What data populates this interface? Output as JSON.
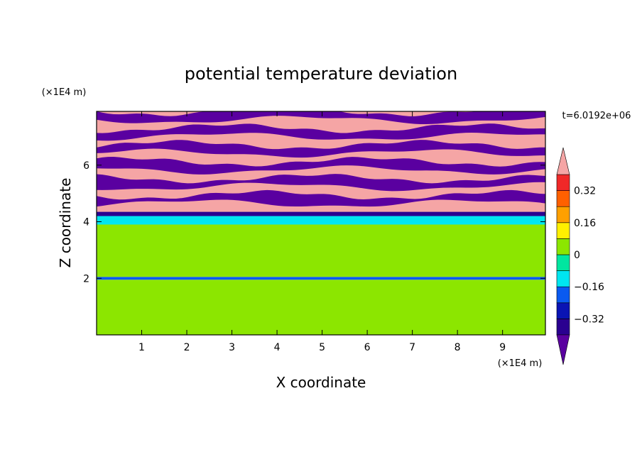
{
  "chart_data": {
    "type": "heatmap",
    "title": "potential temperature deviation",
    "xlabel": "X coordinate",
    "ylabel": "Z coordinate",
    "x_unit": "(×1E4 m)",
    "y_unit": "(×1E4 m)",
    "time_label": "t=6.0192e+06",
    "xlim": [
      0,
      9.95
    ],
    "ylim": [
      0,
      7.9
    ],
    "x_ticks": [
      1,
      2,
      3,
      4,
      5,
      6,
      7,
      8,
      9
    ],
    "x_tick_labels": [
      "1",
      "2",
      "3",
      "4",
      "5",
      "6",
      "7",
      "8",
      "9"
    ],
    "y_ticks": [
      2,
      4,
      6
    ],
    "y_tick_labels": [
      "2",
      "4",
      "6"
    ],
    "colorbar": {
      "levels": [
        -0.4,
        -0.32,
        -0.24,
        -0.16,
        -0.08,
        0,
        0.08,
        0.16,
        0.24,
        0.32,
        0.4
      ],
      "labels": [
        {
          "value": 0.32,
          "text": "0.32"
        },
        {
          "value": 0.16,
          "text": "0.16"
        },
        {
          "value": 0,
          "text": "0"
        },
        {
          "value": -0.16,
          "text": "−0.16"
        },
        {
          "value": -0.32,
          "text": "−0.32"
        }
      ],
      "colors": [
        "#5a00a0",
        "#2a0090",
        "#0a14b4",
        "#0a5af0",
        "#00e6f0",
        "#00e6a0",
        "#8ce600",
        "#fff000",
        "#ffa000",
        "#ff6000",
        "#f02828",
        "#f5a5a5"
      ],
      "below_color": "#5a00a0",
      "above_color": "#f5a5a5"
    },
    "bands": [
      {
        "z0": 0,
        "z1": 1.95,
        "value": 0.04
      },
      {
        "z0": 1.95,
        "z1": 2.05,
        "value": -0.2
      },
      {
        "z0": 2.05,
        "z1": 3.9,
        "value": 0.01
      },
      {
        "z0": 3.9,
        "z1": 4.2,
        "value": -0.1
      },
      {
        "z0": 4.2,
        "z1": 4.35,
        "value": -0.36
      },
      {
        "z0": 4.35,
        "z1": 7.9,
        "value": 0.5,
        "alternating": true
      }
    ]
  }
}
